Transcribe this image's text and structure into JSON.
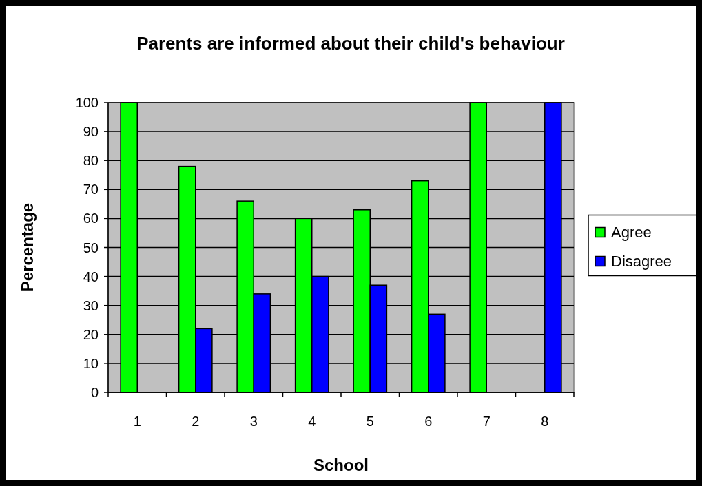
{
  "chart_data": {
    "type": "bar",
    "title": "Parents are informed about their child's behaviour",
    "xlabel": "School",
    "ylabel": "Percentage",
    "categories": [
      "1",
      "2",
      "3",
      "4",
      "5",
      "6",
      "7",
      "8"
    ],
    "series": [
      {
        "name": "Agree",
        "color": "#00ff00",
        "values": [
          100,
          78,
          66,
          60,
          63,
          73,
          100,
          null
        ]
      },
      {
        "name": "Disagree",
        "color": "#0000ff",
        "values": [
          null,
          22,
          34,
          40,
          37,
          27,
          null,
          100
        ]
      }
    ],
    "ylim": [
      0,
      100
    ],
    "yticks": [
      0,
      10,
      20,
      30,
      40,
      50,
      60,
      70,
      80,
      90,
      100
    ],
    "grid": "y",
    "legend": "right"
  }
}
